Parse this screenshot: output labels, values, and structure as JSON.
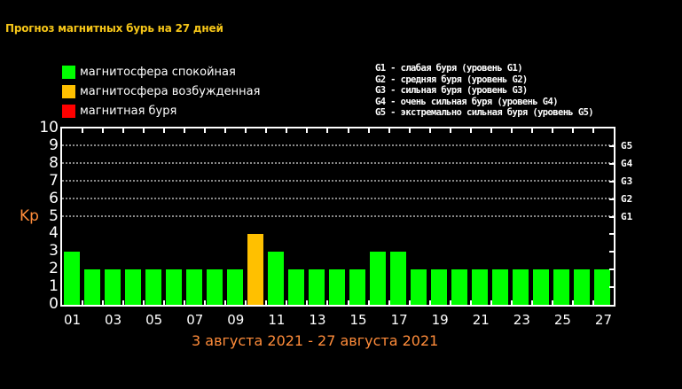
{
  "title": "Прогноз магнитных бурь на 27 дней",
  "legend": [
    {
      "label": "магнитосфера спокойная",
      "color": "#00ff00"
    },
    {
      "label": "магнитосфера возбужденная",
      "color": "#ffc000"
    },
    {
      "label": "магнитная буря",
      "color": "#ff0000"
    }
  ],
  "g_legend": [
    "G1 - слабая буря (уровень G1)",
    "G2 - средняя буря (уровень G2)",
    "G3 - сильная буря (уровень G3)",
    "G4 - очень сильная буря (уровень G4)",
    "G5 - экстремально сильная буря (уровень G5)"
  ],
  "axis": {
    "ylabel": "Kp",
    "yticks": [
      "0",
      "1",
      "2",
      "3",
      "4",
      "5",
      "6",
      "7",
      "8",
      "9",
      "10"
    ],
    "g_labels": [
      {
        "label": "G1",
        "kp": 5
      },
      {
        "label": "G2",
        "kp": 6
      },
      {
        "label": "G3",
        "kp": 7
      },
      {
        "label": "G4",
        "kp": 8
      },
      {
        "label": "G5",
        "kp": 9
      }
    ],
    "xticks": [
      "01",
      "03",
      "05",
      "07",
      "09",
      "11",
      "13",
      "15",
      "17",
      "19",
      "21",
      "23",
      "25",
      "27"
    ]
  },
  "date_range": "3 августа 2021 - 27 августа 2021",
  "chart_data": {
    "type": "bar",
    "title": "Прогноз магнитных бурь на 27 дней",
    "xlabel": "3 августа 2021 - 27 августа 2021",
    "ylabel": "Kp",
    "ylim": [
      0,
      10
    ],
    "categories": [
      "01",
      "02",
      "03",
      "04",
      "05",
      "06",
      "07",
      "08",
      "09",
      "10",
      "11",
      "12",
      "13",
      "14",
      "15",
      "16",
      "17",
      "18",
      "19",
      "20",
      "21",
      "22",
      "23",
      "24",
      "25",
      "26",
      "27"
    ],
    "values": [
      3,
      2,
      2,
      2,
      2,
      2,
      2,
      2,
      2,
      4,
      3,
      2,
      2,
      2,
      2,
      3,
      3,
      2,
      2,
      2,
      2,
      2,
      2,
      2,
      2,
      2,
      2
    ],
    "colors": [
      "#00ff00",
      "#00ff00",
      "#00ff00",
      "#00ff00",
      "#00ff00",
      "#00ff00",
      "#00ff00",
      "#00ff00",
      "#00ff00",
      "#ffc000",
      "#00ff00",
      "#00ff00",
      "#00ff00",
      "#00ff00",
      "#00ff00",
      "#00ff00",
      "#00ff00",
      "#00ff00",
      "#00ff00",
      "#00ff00",
      "#00ff00",
      "#00ff00",
      "#00ff00",
      "#00ff00",
      "#00ff00",
      "#00ff00",
      "#00ff00"
    ],
    "legend": [
      "магнитосфера спокойная",
      "магнитосфера возбужденная",
      "магнитная буря"
    ],
    "grid": "dotted horizontal at Kp 5-9 (G1-G5)",
    "secondary_y_labels": {
      "5": "G1",
      "6": "G2",
      "7": "G3",
      "8": "G4",
      "9": "G5"
    }
  }
}
